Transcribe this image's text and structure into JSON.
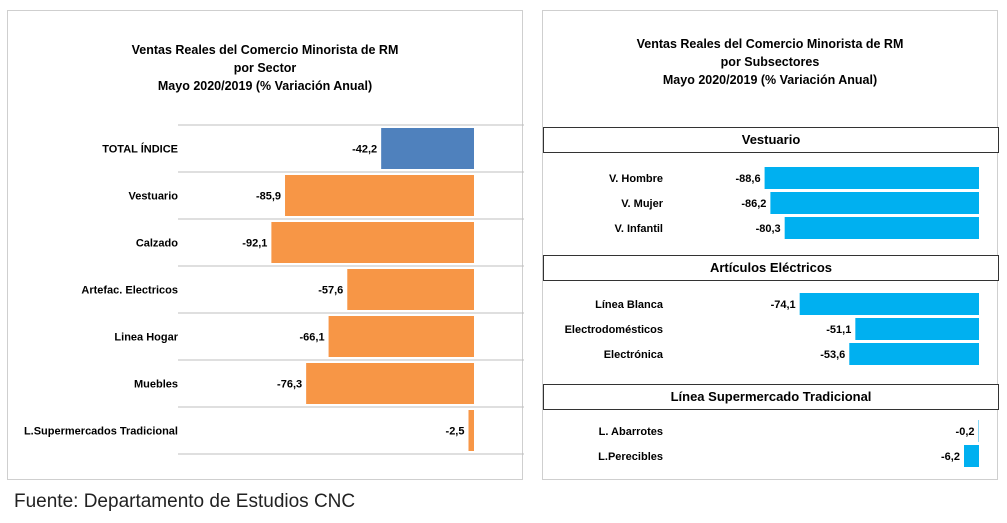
{
  "source_note": "Fuente: Departamento de Estudios CNC",
  "left_chart": {
    "title_lines": [
      "Ventas Reales del Comercio Minorista de RM",
      "por Sector",
      "Mayo 2020/2019 (% Variación Anual)"
    ]
  },
  "right_chart": {
    "title_lines": [
      "Ventas Reales del Comercio Minorista de RM",
      "por Subsectores",
      "Mayo 2020/2019 (% Variación Anual)"
    ],
    "sections": [
      "Vestuario",
      "Artículos Eléctricos",
      "Línea Supermercado Tradicional"
    ]
  },
  "colors": {
    "total": "#4f81bd",
    "sector": "#f79646",
    "subsector": "#00b0f0",
    "gridline": "#bfbfbf"
  },
  "chart_data": [
    {
      "type": "bar",
      "orientation": "horizontal",
      "title": "Ventas Reales del Comercio Minorista de RM por Sector Mayo 2020/2019 (% Variación Anual)",
      "categories": [
        "TOTAL ÍNDICE",
        "Vestuario",
        "Calzado",
        "Artefac. Electricos",
        "Linea Hogar",
        "Muebles",
        "L.Supermercados Tradicional"
      ],
      "values": [
        -42.2,
        -85.9,
        -92.1,
        -57.6,
        -66.1,
        -76.3,
        -2.5
      ],
      "value_labels": [
        "-42,2",
        "-85,9",
        "-92,1",
        "-57,6",
        "-66,1",
        "-76,3",
        "-2,5"
      ],
      "xlim": [
        -100,
        0
      ],
      "grid": true
    },
    {
      "type": "bar",
      "orientation": "horizontal",
      "title": "Ventas Reales del Comercio Minorista de RM por Subsectores Mayo 2020/2019 (% Variación Anual)",
      "groups": [
        {
          "name": "Vestuario",
          "categories": [
            "V. Hombre",
            "V. Mujer",
            "V. Infantil"
          ],
          "values": [
            -88.6,
            -86.2,
            -80.3
          ],
          "value_labels": [
            "-88,6",
            "-86,2",
            "-80,3"
          ]
        },
        {
          "name": "Artículos Eléctricos",
          "categories": [
            "Línea Blanca",
            "Electrodomésticos",
            "Electrónica"
          ],
          "values": [
            -74.1,
            -51.1,
            -53.6
          ],
          "value_labels": [
            "-74,1",
            "-51,1",
            "-53,6"
          ]
        },
        {
          "name": "Línea Supermercado Tradicional",
          "categories": [
            "L. Abarrotes",
            "L.Perecibles"
          ],
          "values": [
            -0.2,
            -6.2
          ],
          "value_labels": [
            "-0,2",
            "-6,2"
          ]
        }
      ],
      "xlim": [
        -100,
        0
      ]
    }
  ]
}
